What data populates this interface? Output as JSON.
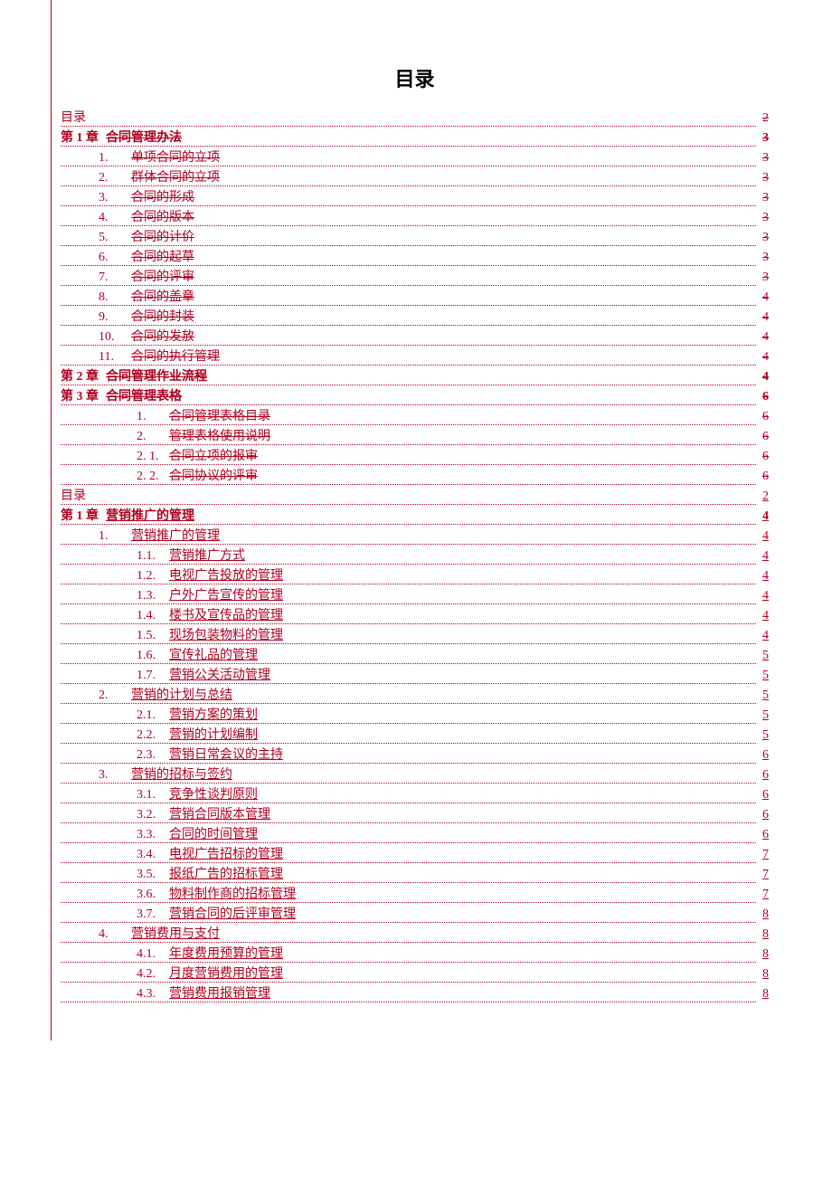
{
  "title": "目录",
  "text_color": "#b00020",
  "entries": [
    {
      "level": 0,
      "num": "目录",
      "label": "",
      "page": "2",
      "style": "strike"
    },
    {
      "level": 0,
      "num": "第 1 章",
      "label": "合同管理办法",
      "page": "3",
      "style": "strike",
      "bold": true
    },
    {
      "level": 1,
      "num": "1.",
      "label": "单项合同的立项",
      "page": "3",
      "style": "strike"
    },
    {
      "level": 1,
      "num": "2.",
      "label": "群体合同的立项",
      "page": "3",
      "style": "strike"
    },
    {
      "level": 1,
      "num": "3.",
      "label": "合同的形成",
      "page": "3",
      "style": "strike"
    },
    {
      "level": 1,
      "num": "4.",
      "label": "合同的版本",
      "page": "3",
      "style": "strike"
    },
    {
      "level": 1,
      "num": "5.",
      "label": "合同的计价",
      "page": "3",
      "style": "strike"
    },
    {
      "level": 1,
      "num": "6.",
      "label": "合同的起草",
      "page": "3",
      "style": "strike"
    },
    {
      "level": 1,
      "num": "7.",
      "label": "合同的评审",
      "page": "3",
      "style": "strike"
    },
    {
      "level": 1,
      "num": "8.",
      "label": "合同的盖章",
      "page": "4",
      "style": "strike"
    },
    {
      "level": 1,
      "num": "9.",
      "label": "合同的封装",
      "page": "4",
      "style": "strike"
    },
    {
      "level": 1,
      "num": "10.",
      "label": "合同的发放",
      "page": "4",
      "style": "strike"
    },
    {
      "level": 1,
      "num": "11.",
      "label": "合同的执行管理",
      "page": "4",
      "style": "strike"
    },
    {
      "level": 0,
      "num": "第 2 章",
      "label": "合同管理作业流程",
      "page": "4",
      "style": "strike",
      "bold": true
    },
    {
      "level": 0,
      "num": "第 3 章",
      "label": "合同管理表格",
      "page": "6",
      "style": "strike",
      "bold": true
    },
    {
      "level": 2,
      "num": "1.",
      "label": "合同管理表格目录",
      "page": "6",
      "style": "strike"
    },
    {
      "level": 2,
      "num": "2.",
      "label": "管理表格使用说明",
      "page": "6",
      "style": "strike"
    },
    {
      "level": 2,
      "num": "2. 1.",
      "label": "合同立项的报审",
      "page": "6",
      "style": "strike"
    },
    {
      "level": 2,
      "num": "2. 2.",
      "label": "合同协议的评审",
      "page": "6",
      "style": "strike"
    },
    {
      "level": 0,
      "num": "目录",
      "label": "",
      "page": "2",
      "style": "under"
    },
    {
      "level": 0,
      "num": "第 1 章",
      "label": "营销推广的管理",
      "page": "4",
      "style": "under",
      "bold": true
    },
    {
      "level": 1,
      "num": "1.",
      "label": "营销推广的管理",
      "page": "4",
      "style": "under"
    },
    {
      "level": 2,
      "num": "1.1.",
      "label": "营销推广方式",
      "page": "4",
      "style": "under"
    },
    {
      "level": 2,
      "num": "1.2.",
      "label": "电视广告投放的管理",
      "page": "4",
      "style": "under"
    },
    {
      "level": 2,
      "num": "1.3.",
      "label": "户外广告宣传的管理",
      "page": "4",
      "style": "under"
    },
    {
      "level": 2,
      "num": "1.4.",
      "label": "楼书及宣传品的管理",
      "page": "4",
      "style": "under"
    },
    {
      "level": 2,
      "num": "1.5.",
      "label": "现场包装物料的管理",
      "page": "4",
      "style": "under"
    },
    {
      "level": 2,
      "num": "1.6.",
      "label": "宣传礼品的管理",
      "page": "5",
      "style": "under"
    },
    {
      "level": 2,
      "num": "1.7.",
      "label": "营销公关活动管理",
      "page": "5",
      "style": "under"
    },
    {
      "level": 1,
      "num": "2.",
      "label": "营销的计划与总结",
      "page": "5",
      "style": "under"
    },
    {
      "level": 2,
      "num": "2.1.",
      "label": "营销方案的策划",
      "page": "5",
      "style": "under"
    },
    {
      "level": 2,
      "num": "2.2.",
      "label": "营销的计划编制",
      "page": "5",
      "style": "under"
    },
    {
      "level": 2,
      "num": "2.3.",
      "label": "营销日常会议的主持",
      "page": "6",
      "style": "under"
    },
    {
      "level": 1,
      "num": "3.",
      "label": "营销的招标与签约",
      "page": "6",
      "style": "under"
    },
    {
      "level": 2,
      "num": "3.1.",
      "label": "竞争性谈判原则",
      "page": "6",
      "style": "under"
    },
    {
      "level": 2,
      "num": "3.2.",
      "label": "营销合同版本管理",
      "page": "6",
      "style": "under"
    },
    {
      "level": 2,
      "num": "3.3.",
      "label": "合同的时间管理",
      "page": "6",
      "style": "under"
    },
    {
      "level": 2,
      "num": "3.4.",
      "label": "电视广告招标的管理",
      "page": "7",
      "style": "under"
    },
    {
      "level": 2,
      "num": "3.5.",
      "label": "报纸广告的招标管理",
      "page": "7",
      "style": "under"
    },
    {
      "level": 2,
      "num": "3.6.",
      "label": "物料制作商的招标管理",
      "page": "7",
      "style": "under"
    },
    {
      "level": 2,
      "num": "3.7.",
      "label": "营销合同的后评审管理",
      "page": "8",
      "style": "under"
    },
    {
      "level": 1,
      "num": "4.",
      "label": "营销费用与支付",
      "page": "8",
      "style": "under"
    },
    {
      "level": 2,
      "num": "4.1.",
      "label": "年度费用预算的管理",
      "page": "8",
      "style": "under"
    },
    {
      "level": 2,
      "num": "4.2.",
      "label": "月度营销费用的管理",
      "page": "8",
      "style": "under"
    },
    {
      "level": 2,
      "num": "4.3.",
      "label": "营销费用报销管理",
      "page": "8",
      "style": "under"
    }
  ]
}
